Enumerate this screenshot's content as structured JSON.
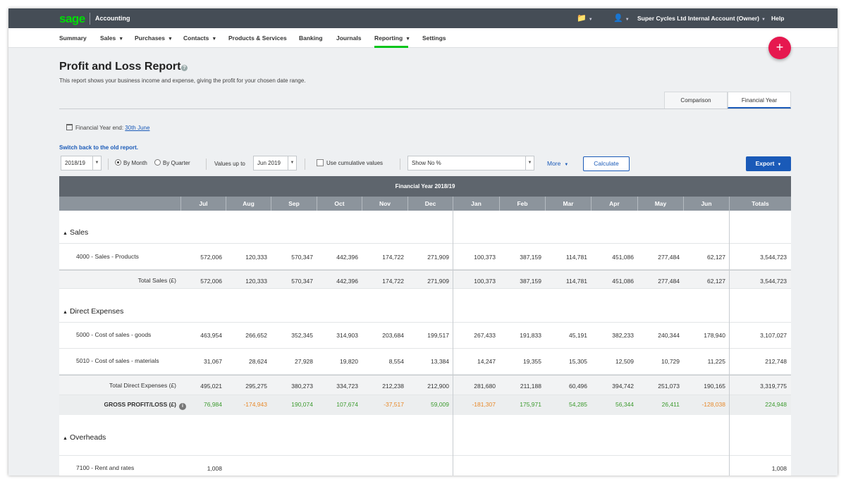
{
  "topbar": {
    "logo": "sage",
    "app_name": "Accounting",
    "account": "Super Cycles Ltd Internal Account (Owner)",
    "help": "Help"
  },
  "nav": {
    "items": [
      "Summary",
      "Sales",
      "Purchases",
      "Contacts",
      "Products & Services",
      "Banking",
      "Journals",
      "Reporting",
      "Settings"
    ],
    "active": "Reporting"
  },
  "fab_label": "+",
  "page": {
    "title": "Profit and Loss Report",
    "subtitle": "This report shows your business income and expense, giving the profit for your chosen date range.",
    "tabs": [
      "Comparison",
      "Financial Year"
    ],
    "active_tab": "Financial Year",
    "fy_label": "Financial Year end:",
    "fy_value": "30th June",
    "switch_link": "Switch back to the old report."
  },
  "filters": {
    "year": "2018/19",
    "by_month": "By Month",
    "by_quarter": "By Quarter",
    "values_up_to_label": "Values up to",
    "values_up_to": "Jun 2019",
    "cumulative_label": "Use cumulative values",
    "percent_select": "Show No %",
    "more": "More",
    "calculate": "Calculate",
    "export": "Export"
  },
  "report": {
    "header": "Financial Year 2018/19",
    "columns": [
      "Jul",
      "Aug",
      "Sep",
      "Oct",
      "Nov",
      "Dec",
      "Jan",
      "Feb",
      "Mar",
      "Apr",
      "May",
      "Jun",
      "Totals"
    ],
    "sections": {
      "sales": "Sales",
      "direct": "Direct Expenses",
      "overheads": "Overheads"
    },
    "rows": {
      "sales_products": {
        "label": "4000 - Sales - Products",
        "values": [
          "572,006",
          "120,333",
          "570,347",
          "442,396",
          "174,722",
          "271,909",
          "100,373",
          "387,159",
          "114,781",
          "451,086",
          "277,484",
          "62,127",
          "3,544,723"
        ]
      },
      "total_sales": {
        "label": "Total Sales (£)",
        "values": [
          "572,006",
          "120,333",
          "570,347",
          "442,396",
          "174,722",
          "271,909",
          "100,373",
          "387,159",
          "114,781",
          "451,086",
          "277,484",
          "62,127",
          "3,544,723"
        ]
      },
      "cos_goods": {
        "label": "5000 - Cost of sales - goods",
        "values": [
          "463,954",
          "266,652",
          "352,345",
          "314,903",
          "203,684",
          "199,517",
          "267,433",
          "191,833",
          "45,191",
          "382,233",
          "240,344",
          "178,940",
          "3,107,027"
        ]
      },
      "cos_materials": {
        "label": "5010 - Cost of sales - materials",
        "values": [
          "31,067",
          "28,624",
          "27,928",
          "19,820",
          "8,554",
          "13,384",
          "14,247",
          "19,355",
          "15,305",
          "12,509",
          "10,729",
          "11,225",
          "212,748"
        ]
      },
      "total_direct": {
        "label": "Total Direct Expenses (£)",
        "values": [
          "495,021",
          "295,275",
          "380,273",
          "334,723",
          "212,238",
          "212,900",
          "281,680",
          "211,188",
          "60,496",
          "394,742",
          "251,073",
          "190,165",
          "3,319,775"
        ]
      },
      "gross": {
        "label": "GROSS PROFIT/LOSS (£)",
        "values": [
          "76,984",
          "-174,943",
          "190,074",
          "107,674",
          "-37,517",
          "59,009",
          "-181,307",
          "175,971",
          "54,285",
          "56,344",
          "26,411",
          "-128,038",
          "224,948"
        ]
      },
      "rent": {
        "label": "7100 - Rent and rates",
        "values": [
          "1,008",
          "",
          "",
          "",
          "",
          "",
          "",
          "",
          "",
          "",
          "",
          "",
          "1,008"
        ]
      }
    }
  },
  "colors": {
    "positive": "#3d9b2f",
    "negative": "#e8892a",
    "accent": "#1a5ab8",
    "brand": "#00dc06",
    "fab": "#e6184f"
  }
}
